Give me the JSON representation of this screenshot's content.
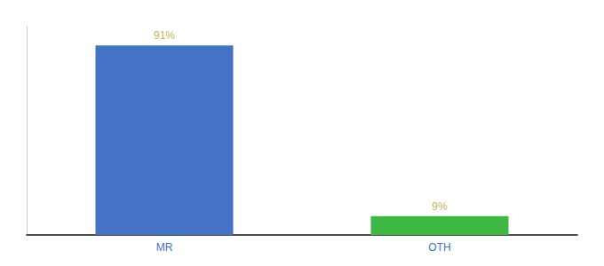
{
  "chart_data": {
    "type": "bar",
    "categories": [
      "MR",
      "OTH"
    ],
    "values": [
      91,
      9
    ],
    "value_labels": [
      "91%",
      "9%"
    ],
    "colors": [
      "#4472c4",
      "#3cb843"
    ],
    "ylim": [
      0,
      100
    ],
    "grid": false,
    "data_labels": true,
    "tick_labels": "x"
  }
}
